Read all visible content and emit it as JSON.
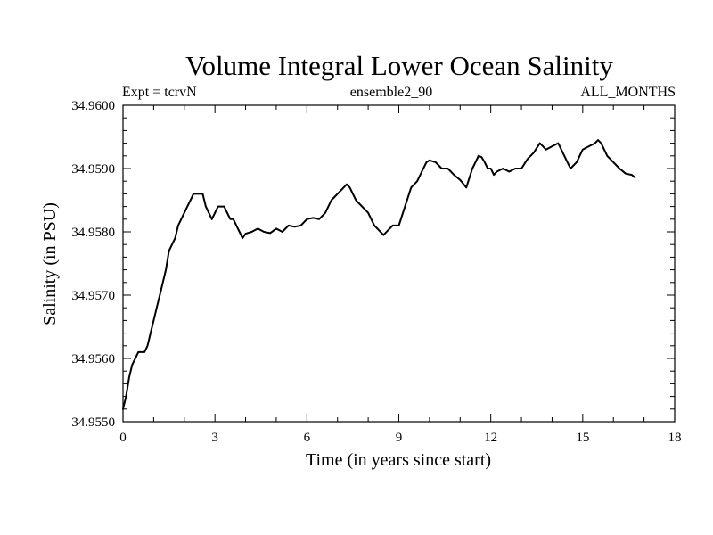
{
  "chart_data": {
    "type": "line",
    "title": "Volume Integral Lower Ocean Salinity",
    "subtitle_left": "Expt = tcrvN",
    "subtitle_center": "ensemble2_90",
    "subtitle_right": "ALL_MONTHS",
    "xlabel": "Time (in years since start)",
    "ylabel": "Salinity (in PSU)",
    "xlim": [
      0,
      18
    ],
    "ylim": [
      34.955,
      34.96
    ],
    "x_ticks": [
      0,
      3,
      6,
      9,
      12,
      15,
      18
    ],
    "x_tick_labels": [
      "0",
      "3",
      "6",
      "9",
      "12",
      "15",
      "18"
    ],
    "y_ticks": [
      34.955,
      34.956,
      34.957,
      34.958,
      34.959,
      34.96
    ],
    "y_tick_labels": [
      "34.9550",
      "34.9560",
      "34.9570",
      "34.9580",
      "34.9590",
      "34.9600"
    ],
    "grid": false,
    "series": [
      {
        "name": "Volume Integral Lower Ocean Salinity",
        "color": "#000000",
        "x": [
          0.0,
          0.1,
          0.2,
          0.3,
          0.4,
          0.5,
          0.6,
          0.7,
          0.8,
          0.9,
          1.0,
          1.1,
          1.2,
          1.3,
          1.4,
          1.5,
          1.6,
          1.7,
          1.8,
          1.9,
          2.0,
          2.1,
          2.2,
          2.3,
          2.4,
          2.5,
          2.6,
          2.7,
          2.8,
          2.9,
          3.0,
          3.1,
          3.2,
          3.3,
          3.4,
          3.5,
          3.6,
          3.7,
          3.8,
          3.9,
          4.0,
          4.2,
          4.4,
          4.6,
          4.8,
          5.0,
          5.2,
          5.4,
          5.6,
          5.8,
          6.0,
          6.2,
          6.4,
          6.6,
          6.8,
          7.0,
          7.2,
          7.3,
          7.4,
          7.5,
          7.6,
          7.8,
          8.0,
          8.2,
          8.4,
          8.5,
          8.6,
          8.8,
          9.0,
          9.2,
          9.4,
          9.6,
          9.8,
          9.9,
          10.0,
          10.2,
          10.4,
          10.6,
          10.8,
          11.0,
          11.2,
          11.4,
          11.5,
          11.6,
          11.7,
          11.8,
          11.9,
          12.0,
          12.1,
          12.2,
          12.4,
          12.6,
          12.8,
          13.0,
          13.2,
          13.4,
          13.6,
          13.8,
          14.0,
          14.2,
          14.4,
          14.6,
          14.8,
          15.0,
          15.2,
          15.4,
          15.5,
          15.6,
          15.8,
          16.0,
          16.2,
          16.4,
          16.6,
          16.7
        ],
        "values": [
          34.9552,
          34.9554,
          34.9557,
          34.9559,
          34.956,
          34.9561,
          34.9561,
          34.9561,
          34.9562,
          34.9564,
          34.9566,
          34.9568,
          34.957,
          34.9572,
          34.9574,
          34.9577,
          34.9578,
          34.9579,
          34.9581,
          34.9582,
          34.9583,
          34.9584,
          34.9585,
          34.9586,
          34.9586,
          34.9586,
          34.9586,
          34.9584,
          34.9583,
          34.9582,
          34.9583,
          34.9584,
          34.9584,
          34.9584,
          34.9583,
          34.9582,
          34.9582,
          34.9581,
          34.958,
          34.9579,
          34.95797,
          34.958,
          34.95805,
          34.958,
          34.95798,
          34.95805,
          34.958,
          34.9581,
          34.95808,
          34.9581,
          34.9582,
          34.95822,
          34.9582,
          34.9583,
          34.9585,
          34.9586,
          34.9587,
          34.95875,
          34.9587,
          34.9586,
          34.9585,
          34.9584,
          34.9583,
          34.9581,
          34.958,
          34.95795,
          34.958,
          34.9581,
          34.9581,
          34.9584,
          34.9587,
          34.9588,
          34.959,
          34.9591,
          34.95913,
          34.9591,
          34.959,
          34.959,
          34.9589,
          34.95882,
          34.9587,
          34.959,
          34.9591,
          34.9592,
          34.95918,
          34.9591,
          34.959,
          34.959,
          34.9589,
          34.95895,
          34.959,
          34.95895,
          34.959,
          34.959,
          34.95915,
          34.95925,
          34.9594,
          34.9593,
          34.95935,
          34.9594,
          34.9592,
          34.959,
          34.9591,
          34.9593,
          34.95935,
          34.9594,
          34.95945,
          34.9594,
          34.9592,
          34.9591,
          34.959,
          34.95892,
          34.9589,
          34.95886
        ]
      }
    ]
  }
}
